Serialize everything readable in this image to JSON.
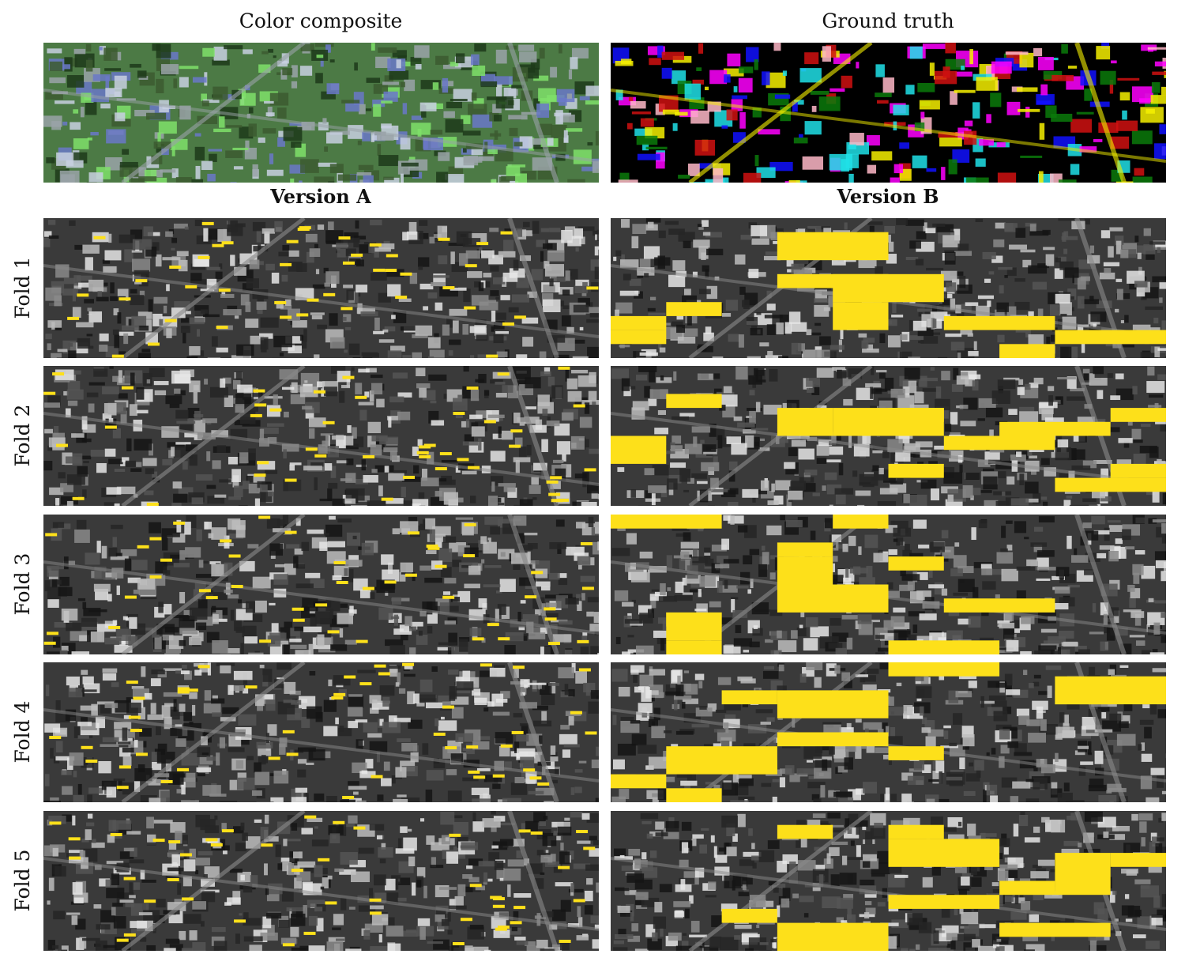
{
  "header": {
    "left": "Color composite",
    "right": "Ground truth"
  },
  "columns": [
    "Version A",
    "Version B"
  ],
  "rows": [
    "Fold 1",
    "Fold 2",
    "Fold 3",
    "Fold 4",
    "Fold 5"
  ]
}
